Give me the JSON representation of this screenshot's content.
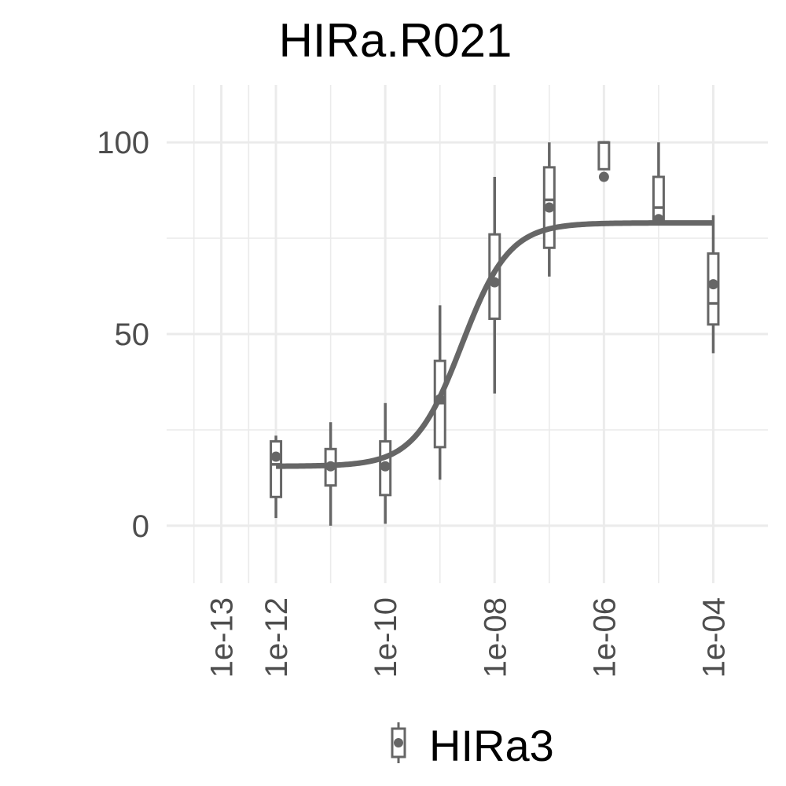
{
  "chart_data": {
    "type": "boxplot",
    "title": "HIRa.R021",
    "xlabel": "",
    "ylabel": "",
    "x_scale": "log10",
    "xlim": [
      1e-14,
      0.001
    ],
    "ylim": [
      -15,
      115
    ],
    "y_ticks": [
      0,
      50,
      100
    ],
    "y_tick_labels": [
      "0",
      "50",
      "100"
    ],
    "x_ticks": [
      1e-13,
      1e-12,
      1e-10,
      1e-08,
      1e-06,
      0.0001
    ],
    "x_tick_labels": [
      "1e-13",
      "1e-12",
      "1e-10",
      "1e-08",
      "1e-06",
      "1e-04"
    ],
    "grid": true,
    "legend_position": "bottom",
    "colors": {
      "series": "#666666",
      "grid": "#ebebeb",
      "text": "#4d4d4d"
    },
    "series": [
      {
        "name": "HIRa3",
        "boxes": [
          {
            "x": 1e-12,
            "whisker_low": 2,
            "q1": 7.5,
            "median": 16,
            "q3": 22,
            "whisker_high": 23.5,
            "mean": 18
          },
          {
            "x": 1e-11,
            "whisker_low": 0,
            "q1": 10.5,
            "median": 15,
            "q3": 20,
            "whisker_high": 27,
            "mean": 15.5
          },
          {
            "x": 1e-10,
            "whisker_low": 0.5,
            "q1": 8,
            "median": 15,
            "q3": 22,
            "whisker_high": 32,
            "mean": 15.5
          },
          {
            "x": 1e-09,
            "whisker_low": 12,
            "q1": 20.5,
            "median": 32,
            "q3": 43,
            "whisker_high": 57.5,
            "mean": 33
          },
          {
            "x": 1e-08,
            "whisker_low": 34.5,
            "q1": 54,
            "median": 63.5,
            "q3": 76,
            "whisker_high": 91,
            "mean": 63.5
          },
          {
            "x": 1e-07,
            "whisker_low": 65,
            "q1": 72.5,
            "median": 85,
            "q3": 93.5,
            "whisker_high": 100,
            "mean": 83
          },
          {
            "x": 1e-06,
            "whisker_low": 93,
            "q1": 93,
            "median": 100,
            "q3": 100,
            "whisker_high": 100,
            "mean": 91
          },
          {
            "x": 1e-05,
            "whisker_low": 79,
            "q1": 79.5,
            "median": 83,
            "q3": 91,
            "whisker_high": 100,
            "mean": 80
          },
          {
            "x": 0.0001,
            "whisker_low": 45,
            "q1": 52.5,
            "median": 58,
            "q3": 71,
            "whisker_high": 81,
            "mean": 63
          }
        ],
        "fit_curve": {
          "type": "4PL",
          "bottom": 15.5,
          "top": 79,
          "log_ec50": -8.6,
          "hill_slope": 1,
          "x_range": [
            1e-12,
            0.0001
          ]
        }
      }
    ]
  }
}
